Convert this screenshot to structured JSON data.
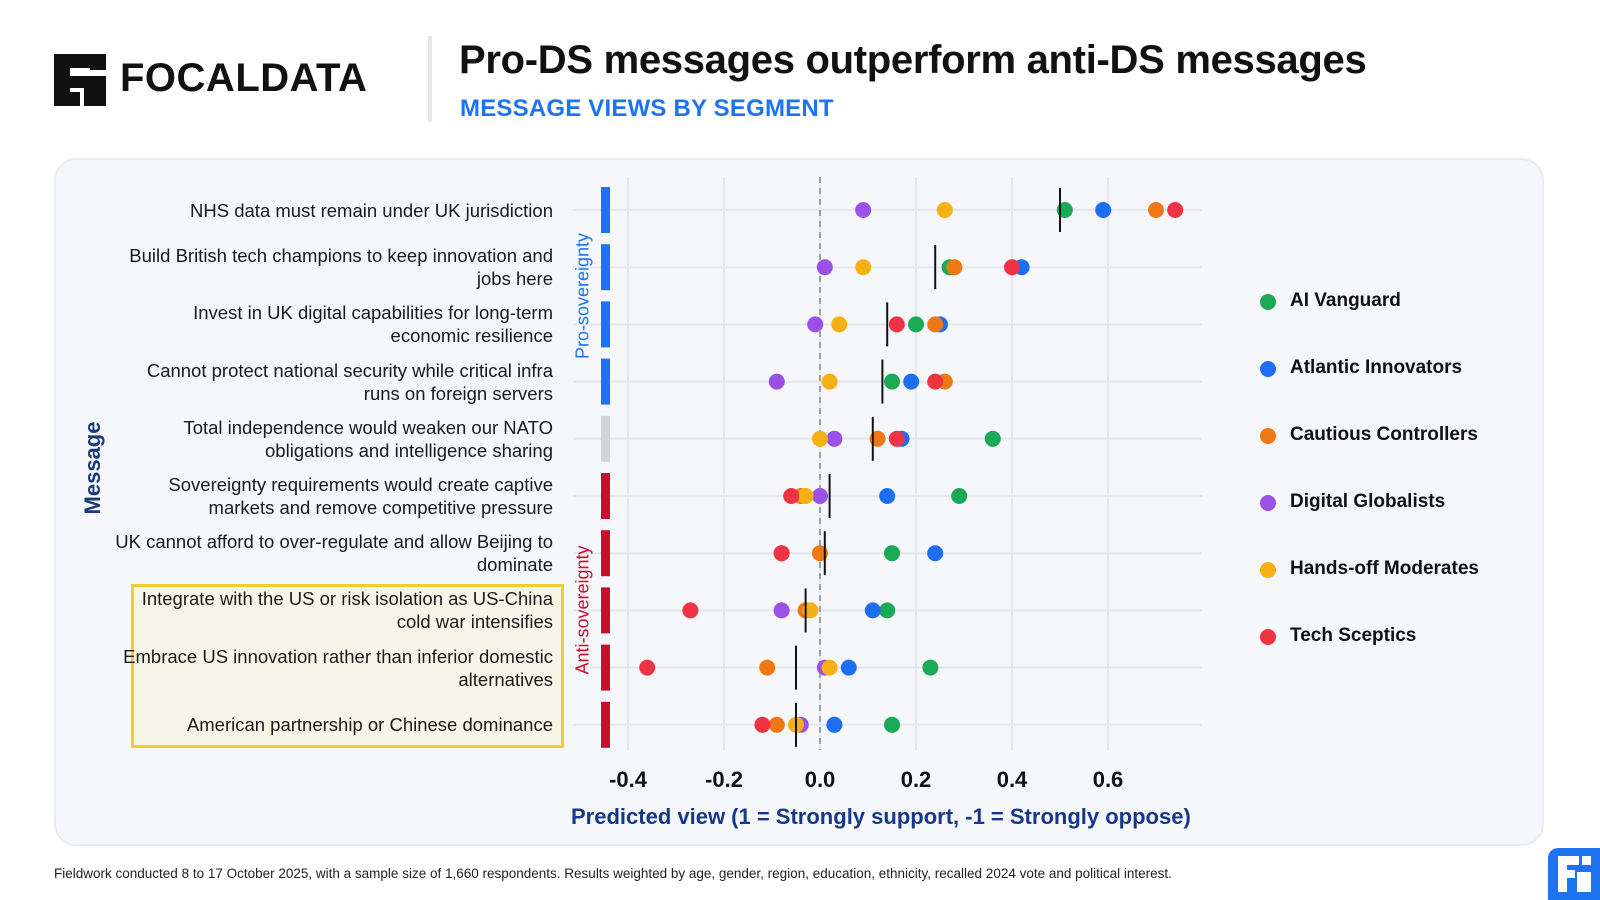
{
  "header": {
    "brand": "FOCALDATA",
    "title": "Pro-DS messages outperform anti-DS messages",
    "subtitle": "MESSAGE VIEWS BY SEGMENT"
  },
  "footer": {
    "note": "Fieldwork conducted 8 to 17 October 2025, with a sample size of 1,660 respondents. Results weighted by age, gender, region, education, ethnicity, recalled 2024 vote and political interest."
  },
  "colors": {
    "pro": "#1e73f0",
    "neutral": "#d2d4d8",
    "anti": "#c8102e",
    "highlight_border": "#f3cd2c"
  },
  "chart_data": {
    "type": "scatter",
    "title": "Pro-DS messages outperform anti-DS messages",
    "subtitle": "MESSAGE VIEWS BY SEGMENT",
    "xlabel": "Predicted view (1 = Strongly support, -1 = Strongly oppose)",
    "ylabel": "Message",
    "xlim": [
      -0.45,
      0.8
    ],
    "xticks": [
      -0.4,
      -0.2,
      0.0,
      0.2,
      0.4,
      0.6
    ],
    "xtick_labels": [
      "-0.4",
      "-0.2",
      "0.0",
      "0.2",
      "0.4",
      "0.6"
    ],
    "reference_line": 0,
    "legend_position": "right",
    "groups": [
      {
        "label": "Pro-sovereignty",
        "rows": [
          0,
          3
        ],
        "color": "#1e73f0"
      },
      {
        "label": "Anti-sovereignty",
        "rows": [
          5,
          9
        ],
        "color": "#c8102e"
      }
    ],
    "segments": [
      {
        "name": "AI Vanguard",
        "color": "#1aaa55"
      },
      {
        "name": "Atlantic Innovators",
        "color": "#1e6ff0"
      },
      {
        "name": "Cautious Controllers",
        "color": "#f07814"
      },
      {
        "name": "Digital Globalists",
        "color": "#9b51e8"
      },
      {
        "name": "Hands-off Moderates",
        "color": "#f5b014"
      },
      {
        "name": "Tech Sceptics",
        "color": "#f03245"
      }
    ],
    "messages": [
      {
        "label": "NHS data must remain under UK jurisdiction",
        "group": "pro",
        "average": 0.5,
        "values": [
          0.51,
          0.59,
          0.7,
          0.09,
          0.26,
          0.74
        ],
        "highlighted": false
      },
      {
        "label": "Build British tech champions to keep innovation and jobs here",
        "group": "pro",
        "average": 0.24,
        "values": [
          0.27,
          0.42,
          0.28,
          0.01,
          0.09,
          0.4
        ],
        "highlighted": false
      },
      {
        "label": "Invest in UK digital capabilities for long-term economic resilience",
        "group": "pro",
        "average": 0.14,
        "values": [
          0.2,
          0.25,
          0.24,
          -0.01,
          0.04,
          0.16
        ],
        "highlighted": false
      },
      {
        "label": "Cannot protect national security while critical infra runs on foreign servers",
        "group": "pro",
        "average": 0.13,
        "values": [
          0.15,
          0.19,
          0.26,
          -0.09,
          0.02,
          0.24
        ],
        "highlighted": false
      },
      {
        "label": "Total independence would weaken our NATO obligations and intelligence sharing",
        "group": "neutral",
        "average": 0.11,
        "values": [
          0.36,
          0.17,
          0.12,
          0.03,
          0.0,
          0.16
        ],
        "highlighted": false
      },
      {
        "label": "Sovereignty requirements would create captive markets and remove competitive pressure",
        "group": "anti",
        "average": 0.02,
        "values": [
          0.29,
          0.14,
          -0.04,
          0.0,
          -0.03,
          -0.06
        ],
        "highlighted": false
      },
      {
        "label": "UK cannot afford to over-regulate and allow Beijing to dominate",
        "group": "anti",
        "average": 0.01,
        "values": [
          0.15,
          0.24,
          0.0,
          -0.08,
          -0.08,
          -0.08
        ],
        "highlighted": false
      },
      {
        "label": "Integrate with the US or risk isolation as US-China cold war intensifies",
        "group": "anti",
        "average": -0.03,
        "values": [
          0.14,
          0.11,
          -0.03,
          -0.08,
          -0.02,
          -0.27
        ],
        "highlighted": true
      },
      {
        "label": "Embrace US innovation rather than inferior domestic alternatives",
        "group": "anti",
        "average": -0.05,
        "values": [
          0.23,
          0.06,
          -0.11,
          0.01,
          0.02,
          -0.36
        ],
        "highlighted": true
      },
      {
        "label": "American partnership or Chinese dominance",
        "group": "anti",
        "average": -0.05,
        "values": [
          0.15,
          0.03,
          -0.09,
          -0.04,
          -0.05,
          -0.12
        ],
        "highlighted": true
      }
    ]
  }
}
